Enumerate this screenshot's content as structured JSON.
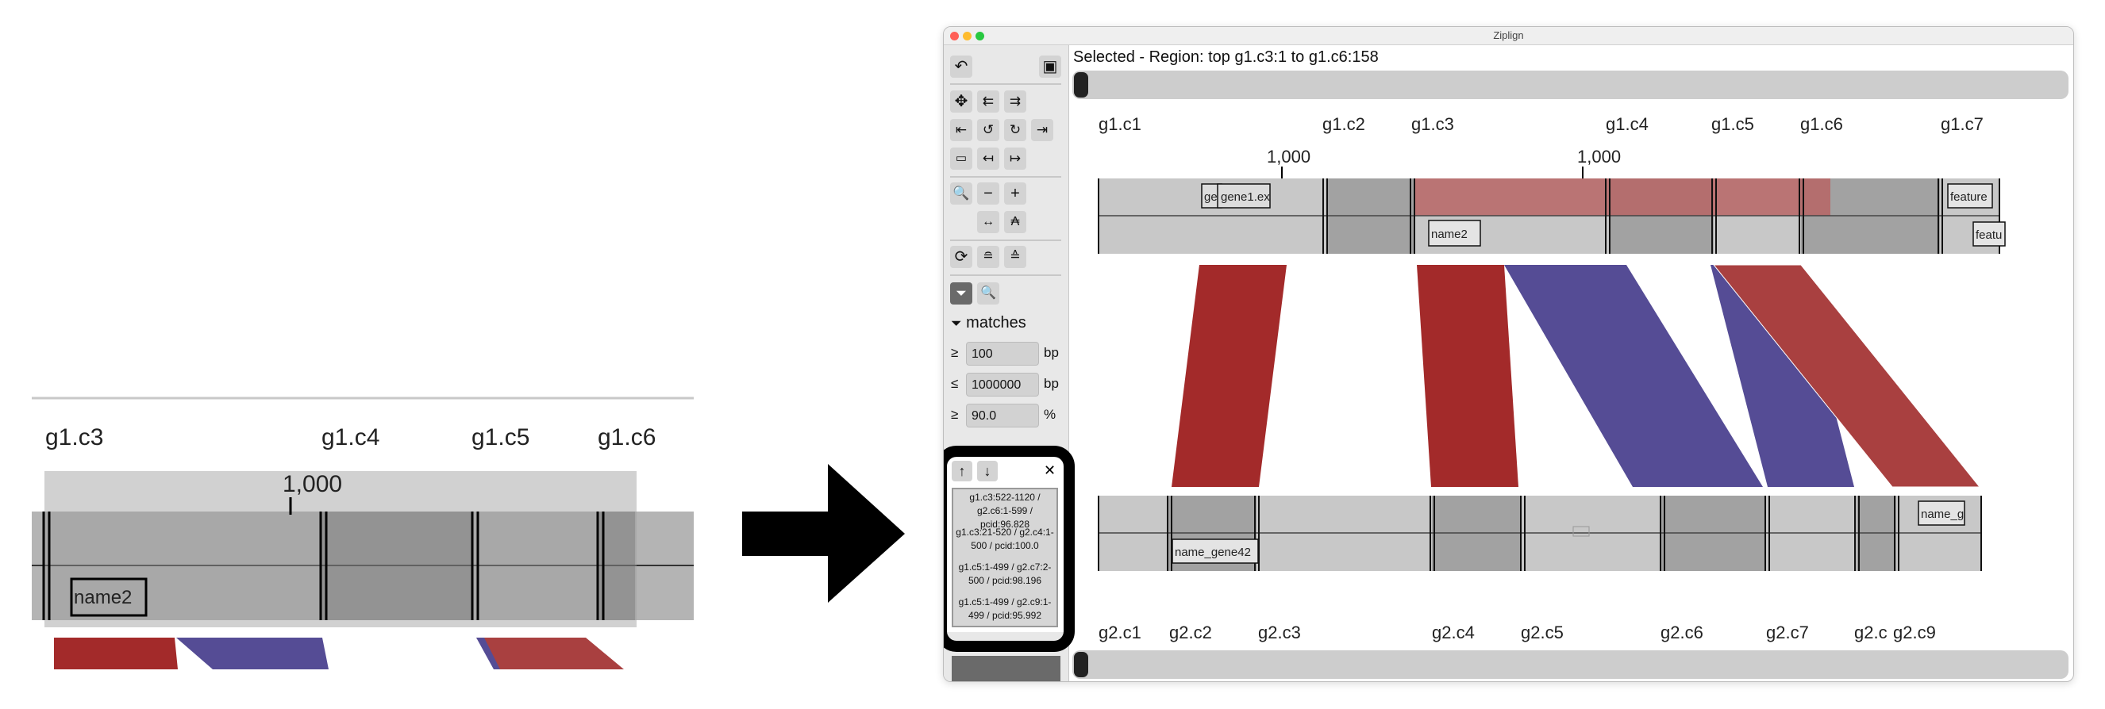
{
  "zoom_panel": {
    "contigs": [
      "g1.c3",
      "g1.c4",
      "g1.c5",
      "g1.c6"
    ],
    "tick_label": "1,000",
    "feature_label": "name2"
  },
  "window": {
    "title": "Ziplign",
    "status": "Selected - Region: top g1.c3:1 to g1.c6:158"
  },
  "toolbar": {
    "undo_icon": "↶",
    "copy_icon": "▣",
    "move_icon": "✥",
    "zoom_in_icon": "🔍",
    "zoom_minus": "−",
    "zoom_plus": "+",
    "filter_icon": "⏷",
    "search_icon": "🔍"
  },
  "filter": {
    "heading": "matches",
    "min_length": "100",
    "max_length": "1000000",
    "min_pcid": "90.0",
    "ge": "≥",
    "le": "≤",
    "unit_bp": "bp",
    "unit_pct": "%"
  },
  "match_list": {
    "up": "↑",
    "down": "↓",
    "close": "✕",
    "items": [
      "g1.c3:522-1120 / g2.c6:1-599 / pcid:96.828",
      "g1.c3:21-520 / g2.c4:1-500 / pcid:100.0",
      "g1.c5:1-499 / g2.c7:2-500 / pcid:98.196",
      "g1.c5:1-499 / g2.c9:1-499 / pcid:95.992"
    ]
  },
  "top_genome": {
    "contigs": [
      "g1.c1",
      "g1.c2",
      "g1.c3",
      "g1.c4",
      "g1.c5",
      "g1.c6",
      "g1.c7"
    ],
    "ticks": [
      "1,000",
      "1,000"
    ],
    "features": [
      "ge",
      "gene1.ex",
      "feature",
      "name2",
      "featu"
    ]
  },
  "bottom_genome": {
    "contigs": [
      "g2.c1",
      "g2.c2",
      "g2.c3",
      "g2.c4",
      "g2.c5",
      "g2.c6",
      "g2.c7",
      "g2.c",
      "g2.c9"
    ],
    "features": [
      "name_gene42",
      "name_g"
    ]
  },
  "colors": {
    "forward": "#a32a2a",
    "reverse": "#554c95",
    "selection": "#b76565",
    "contig_fill": "#c8c8c8",
    "contig_alt": "#a2a2a2"
  }
}
